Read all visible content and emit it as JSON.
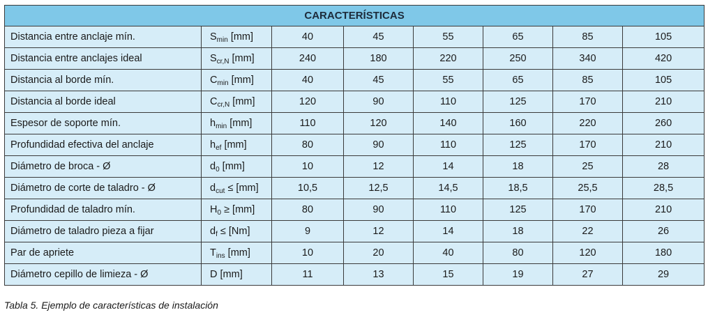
{
  "table": {
    "title": "CARACTERÍSTICAS",
    "rows": [
      {
        "label": "Distancia entre anclaje mín.",
        "sym": "S",
        "sub": "min",
        "unit": " [mm]",
        "values": [
          "40",
          "45",
          "55",
          "65",
          "85",
          "105"
        ]
      },
      {
        "label": "Distancia entre anclajes ideal",
        "sym": "S",
        "sub": "cr,N",
        "unit": " [mm]",
        "values": [
          "240",
          "180",
          "220",
          "250",
          "340",
          "420"
        ]
      },
      {
        "label": "Distancia al borde mín.",
        "sym": "C",
        "sub": "min",
        "unit": " [mm]",
        "values": [
          "40",
          "45",
          "55",
          "65",
          "85",
          "105"
        ]
      },
      {
        "label": "Distancia al borde ideal",
        "sym": "C",
        "sub": "cr,N",
        "unit": " [mm]",
        "values": [
          "120",
          "90",
          "110",
          "125",
          "170",
          "210"
        ]
      },
      {
        "label": "Espesor de soporte mín.",
        "sym": "h",
        "sub": "min",
        "unit": " [mm]",
        "values": [
          "110",
          "120",
          "140",
          "160",
          "220",
          "260"
        ]
      },
      {
        "label": "Profundidad efectiva del anclaje",
        "sym": "h",
        "sub": "ef",
        "unit": " [mm]",
        "values": [
          "80",
          "90",
          "110",
          "125",
          "170",
          "210"
        ]
      },
      {
        "label": "Diámetro de broca - Ø",
        "sym": "d",
        "sub": "0",
        "unit": " [mm]",
        "values": [
          "10",
          "12",
          "14",
          "18",
          "25",
          "28"
        ]
      },
      {
        "label": "Diámetro de corte de taladro - Ø",
        "sym": "d",
        "sub": "cut",
        "unit": " ≤ [mm]",
        "values": [
          "10,5",
          "12,5",
          "14,5",
          "18,5",
          "25,5",
          "28,5"
        ]
      },
      {
        "label": "Profundidad de taladro mín.",
        "sym": "H",
        "sub": "0",
        "unit": " ≥ [mm]",
        "values": [
          "80",
          "90",
          "110",
          "125",
          "170",
          "210"
        ]
      },
      {
        "label": "Diámetro de taladro pieza a fijar",
        "sym": "d",
        "sub": "f",
        "unit": " ≤ [Nm]",
        "values": [
          "9",
          "12",
          "14",
          "18",
          "22",
          "26"
        ]
      },
      {
        "label": "Par de apriete",
        "sym": "T",
        "sub": "ins",
        "unit": " [mm]",
        "values": [
          "10",
          "20",
          "40",
          "80",
          "120",
          "180"
        ]
      },
      {
        "label": "Diámetro cepillo de limieza - Ø",
        "sym": "D",
        "sub": "",
        "unit": " [mm]",
        "values": [
          "11",
          "13",
          "15",
          "19",
          "27",
          "29"
        ]
      }
    ]
  },
  "caption": "Tabla 5. Ejemplo de características de instalación"
}
